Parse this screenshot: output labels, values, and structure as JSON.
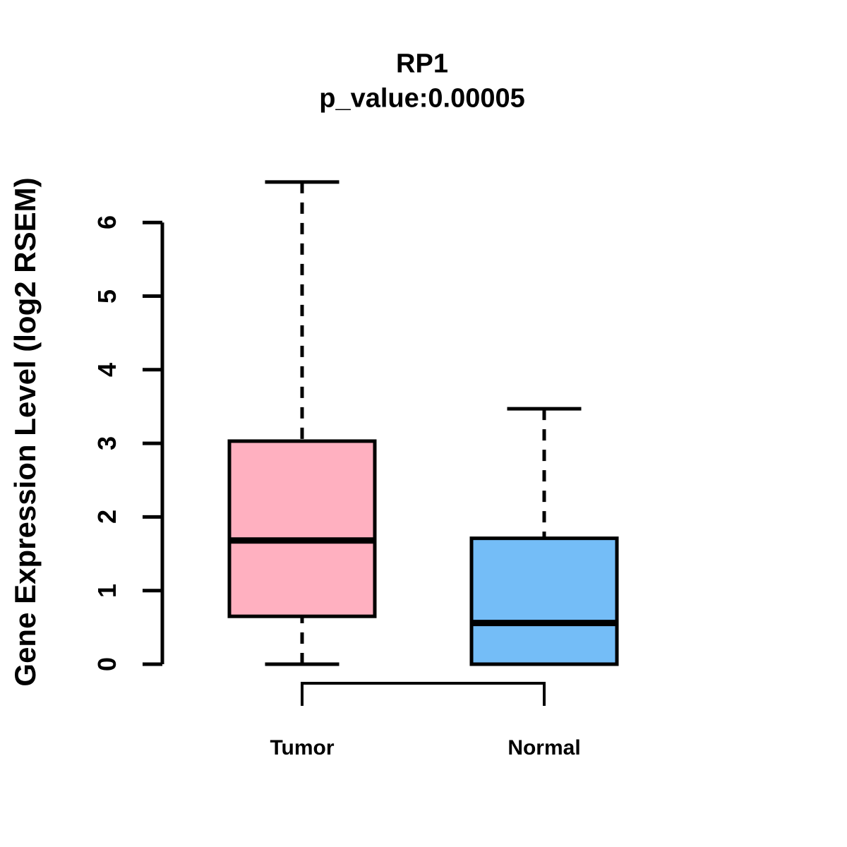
{
  "chart_data": {
    "type": "boxplot",
    "title": "RP1",
    "subtitle": "p_value:0.00005",
    "ylabel": "Gene Expression Level (log2 RSEM)",
    "xlabel": "",
    "categories": [
      "Tumor",
      "Normal"
    ],
    "series": [
      {
        "name": "Tumor",
        "box_color": "#FFB0C0",
        "whisker_low": 0,
        "q1": 0.65,
        "median": 1.68,
        "q3": 3.03,
        "whisker_high": 6.55
      },
      {
        "name": "Normal",
        "box_color": "#74BDF7",
        "whisker_low": 0,
        "q1": 0,
        "median": 0.56,
        "q3": 1.71,
        "whisker_high": 3.47
      }
    ],
    "yticks": [
      0,
      1,
      2,
      3,
      4,
      5,
      6
    ],
    "ylim": [
      0,
      6.6
    ],
    "axis_color": "#000000",
    "grid": false,
    "legend": "none",
    "significance_bracket": {
      "between": [
        "Tumor",
        "Normal"
      ]
    }
  }
}
